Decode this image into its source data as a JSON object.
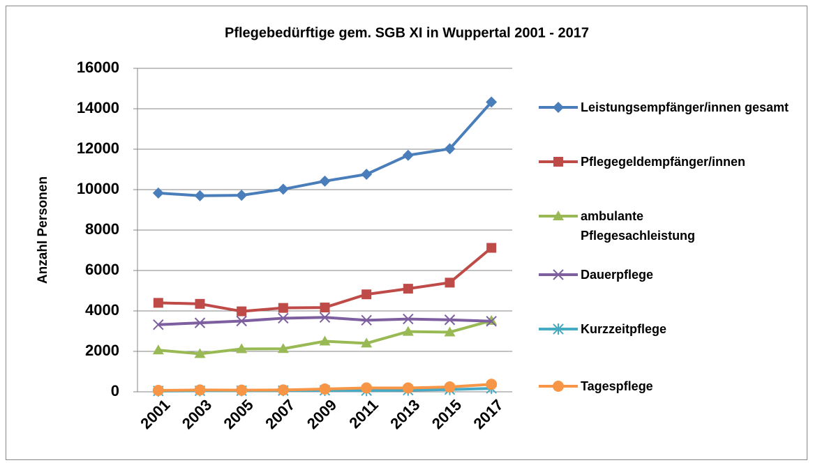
{
  "chart_data": {
    "type": "line",
    "title": "Pflegebedürftige gem. SGB XI in Wuppertal 2001 - 2017",
    "y_label": "Anzahl Personen",
    "categories": [
      "2001",
      "2003",
      "2005",
      "2007",
      "2009",
      "2011",
      "2013",
      "2015",
      "2017"
    ],
    "series": [
      {
        "name": "Leistungsempfänger/innen gesamt",
        "color": "#4a7ebb",
        "marker": "diamond",
        "values": [
          9830,
          9700,
          9720,
          10020,
          10420,
          10760,
          11700,
          12020,
          14330
        ]
      },
      {
        "name": "Pflegegeldempfänger/innen",
        "color": "#be4b48",
        "marker": "square",
        "values": [
          4400,
          4350,
          3980,
          4150,
          4170,
          4820,
          5100,
          5400,
          7120
        ]
      },
      {
        "name": "ambulante Pflegesachleistung",
        "color": "#98b954",
        "marker": "triangle",
        "values": [
          2060,
          1880,
          2120,
          2130,
          2500,
          2400,
          2980,
          2950,
          3520
        ]
      },
      {
        "name": "Dauerpflege",
        "color": "#7d5fa0",
        "marker": "x",
        "values": [
          3320,
          3410,
          3500,
          3640,
          3680,
          3540,
          3600,
          3560,
          3490
        ]
      },
      {
        "name": "Kurzzeitpflege",
        "color": "#46aac5",
        "marker": "star",
        "values": [
          40,
          50,
          55,
          60,
          70,
          60,
          80,
          110,
          170
        ]
      },
      {
        "name": "Tagespflege",
        "color": "#f79646",
        "marker": "circle",
        "values": [
          70,
          90,
          80,
          90,
          140,
          190,
          190,
          240,
          370
        ]
      }
    ],
    "ylim": [
      0,
      16000
    ],
    "yticks": [
      0,
      2000,
      4000,
      6000,
      8000,
      10000,
      12000,
      14000,
      16000
    ],
    "grid": true,
    "legend": "right"
  }
}
